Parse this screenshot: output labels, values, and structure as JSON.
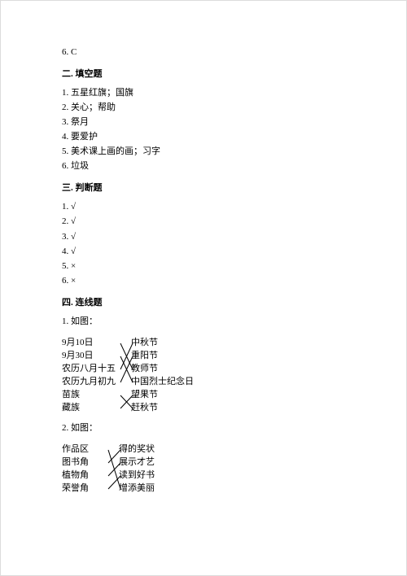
{
  "top_line": "6. C",
  "section2": {
    "title": "二. 填空题",
    "items": [
      "1. 五星红旗；国旗",
      "2. 关心；帮助",
      "3. 祭月",
      "4. 要爱护",
      "5. 美术课上画的画；习字",
      "6. 垃圾"
    ]
  },
  "section3": {
    "title": "三. 判断题",
    "items": [
      "1. √",
      "2. √",
      "3. √",
      "4. √",
      "5. ×",
      "6. ×"
    ]
  },
  "section4": {
    "title": "四. 连线题",
    "q1_label": "1. 如图：",
    "q2_label": "2. 如图：",
    "match1": {
      "left": [
        "9月10日",
        "9月30日",
        "农历八月十五",
        "农历九月初九",
        "苗族",
        "藏族"
      ],
      "right": [
        "中秋节",
        "重阳节",
        "教师节",
        "中国烈士纪念日",
        "望果节",
        "赶秋节"
      ],
      "edges": [
        [
          0,
          2
        ],
        [
          1,
          3
        ],
        [
          2,
          0
        ],
        [
          3,
          1
        ],
        [
          4,
          5
        ],
        [
          5,
          4
        ]
      ],
      "line_color": "#000000"
    },
    "match2": {
      "left": [
        "作品区",
        "图书角",
        "植物角",
        "荣誉角"
      ],
      "right": [
        "得的奖状",
        "展示才艺",
        "读到好书",
        "增添美丽"
      ],
      "edges": [
        [
          0,
          1
        ],
        [
          1,
          2
        ],
        [
          2,
          3
        ],
        [
          3,
          0
        ]
      ],
      "line_color": "#000000"
    }
  }
}
